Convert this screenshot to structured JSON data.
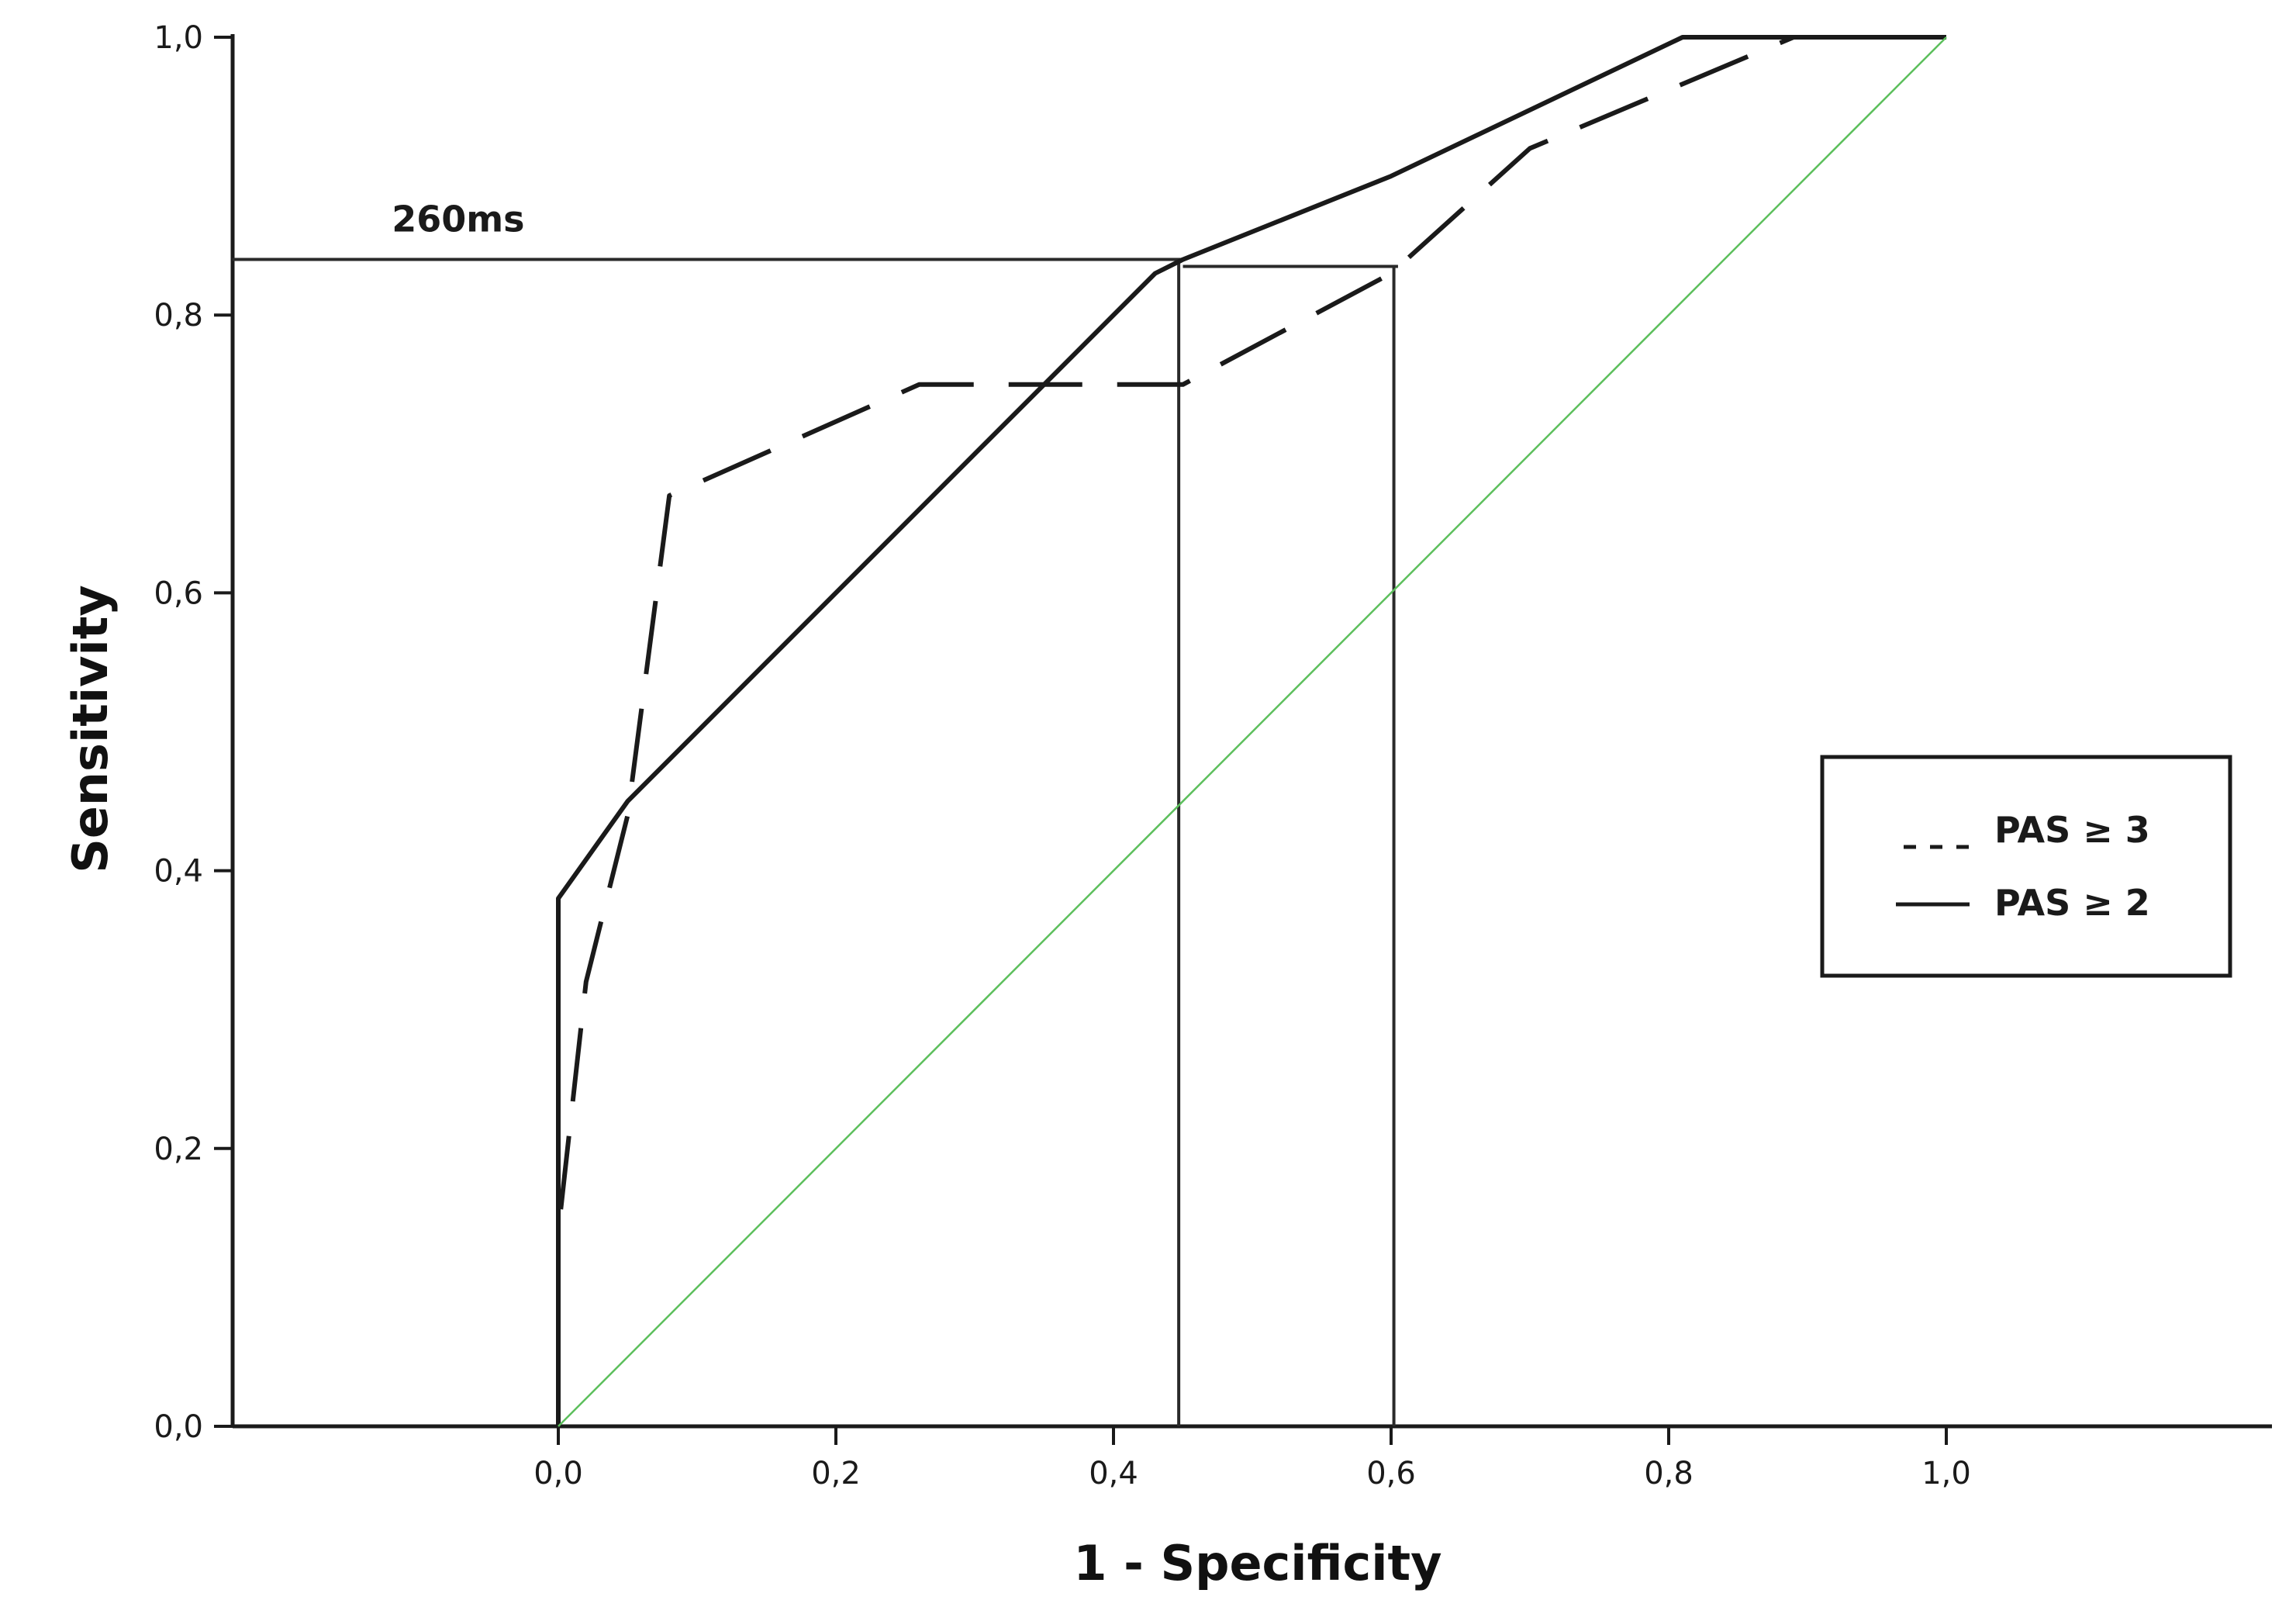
{
  "chart_data": {
    "type": "line",
    "title": "",
    "xlabel": "1 - Specificity",
    "ylabel": "Sensitivity",
    "xlim": [
      0,
      1
    ],
    "ylim": [
      0,
      1
    ],
    "x_ticks": [
      "0,0",
      "0,2",
      "0,4",
      "0,6",
      "0,8",
      "1,0"
    ],
    "y_ticks": [
      "0,0",
      "0,2",
      "0,4",
      "0,6",
      "0,8",
      "1,0"
    ],
    "grid": false,
    "legend_position": "right",
    "series": [
      {
        "name": "PAS ≥ 3",
        "style": "dashed",
        "color": "#1a1a1a",
        "points": [
          [
            0.0,
            0.0
          ],
          [
            0.0,
            0.14
          ],
          [
            0.02,
            0.32
          ],
          [
            0.05,
            0.44
          ],
          [
            0.08,
            0.67
          ],
          [
            0.26,
            0.75
          ],
          [
            0.45,
            0.75
          ],
          [
            0.6,
            0.83
          ],
          [
            0.7,
            0.92
          ],
          [
            0.89,
            1.0
          ],
          [
            1.0,
            1.0
          ]
        ]
      },
      {
        "name": "PAS ≥ 2",
        "style": "solid",
        "color": "#1a1a1a",
        "points": [
          [
            0.0,
            0.0
          ],
          [
            0.0,
            0.38
          ],
          [
            0.05,
            0.45
          ],
          [
            0.15,
            0.55
          ],
          [
            0.3,
            0.7
          ],
          [
            0.43,
            0.83
          ],
          [
            0.45,
            0.84
          ],
          [
            0.6,
            0.9
          ],
          [
            0.81,
            1.0
          ],
          [
            1.0,
            1.0
          ]
        ]
      },
      {
        "name": "",
        "style": "reference",
        "color": "#5cbf5c",
        "points": [
          [
            0.0,
            0.0
          ],
          [
            1.0,
            1.0
          ]
        ]
      }
    ],
    "annotations": [
      {
        "text": "260ms",
        "x": -0.12,
        "y": 0.86
      }
    ],
    "reference_lines": [
      {
        "type": "horizontal",
        "y": 0.84,
        "x_from": -0.235,
        "x_to": 0.45
      },
      {
        "type": "horizontal",
        "y": 0.835,
        "x_from": 0.45,
        "x_to": 0.605
      },
      {
        "type": "vertical",
        "x": 0.447,
        "y_from": 0.0,
        "y_to": 0.84
      },
      {
        "type": "vertical",
        "x": 0.602,
        "y_from": 0.0,
        "y_to": 0.835
      }
    ]
  }
}
